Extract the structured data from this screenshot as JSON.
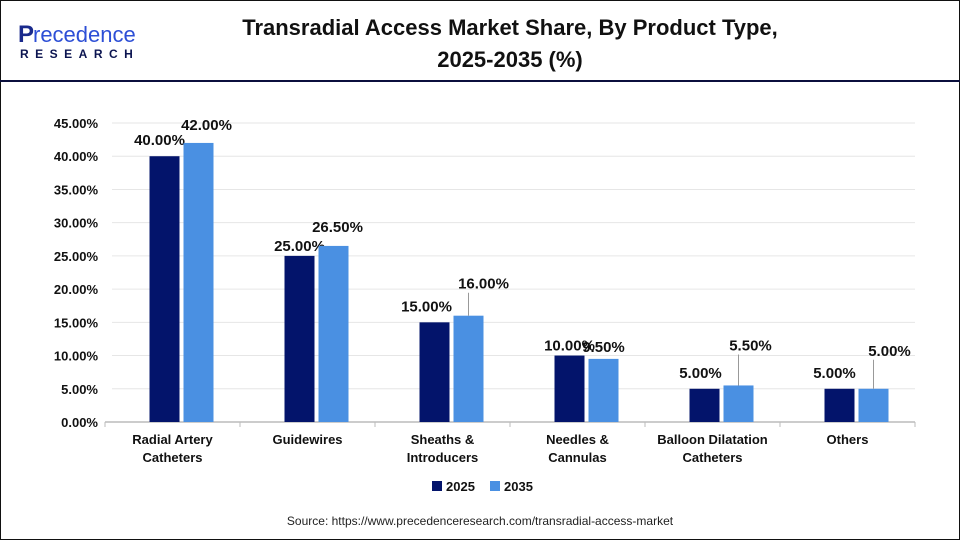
{
  "logo": {
    "line1": "Precedence",
    "line2": "RESEARCH"
  },
  "title_lines": [
    "Transradial Access Market Share, By Product Type,",
    "2025-2035 (%)"
  ],
  "source": "Source: https://www.precedenceresearch.com/transradial-access-market",
  "colors": {
    "2025": "#03146b",
    "2035": "#4a90e2"
  },
  "chart_data": {
    "type": "bar",
    "title": "Transradial Access Market Share, By Product Type, 2025-2035 (%)",
    "categories": [
      [
        "Radial Artery",
        "Catheters"
      ],
      [
        "Guidewires"
      ],
      [
        "Sheaths &",
        "Introducers"
      ],
      [
        "Needles &",
        "Cannulas"
      ],
      [
        "Balloon Dilatation",
        "Catheters"
      ],
      [
        "Others"
      ]
    ],
    "series": [
      {
        "name": "2025",
        "values": [
          40,
          25,
          15,
          10,
          5,
          5
        ]
      },
      {
        "name": "2035",
        "values": [
          42,
          26.5,
          16,
          9.5,
          5.5,
          5
        ]
      }
    ],
    "data_labels": [
      [
        "40.00%",
        "25.00%",
        "15.00%",
        "10.00%",
        "5.00%",
        "5.00%"
      ],
      [
        "42.00%",
        "26.50%",
        "16.00%",
        "9.50%",
        "5.50%",
        "5.00%"
      ]
    ],
    "yticks": [
      "0.00%",
      "5.00%",
      "10.00%",
      "15.00%",
      "20.00%",
      "25.00%",
      "30.00%",
      "35.00%",
      "40.00%",
      "45.00%"
    ],
    "ylim": [
      0,
      45
    ],
    "grid": true,
    "legend": "bottom"
  }
}
